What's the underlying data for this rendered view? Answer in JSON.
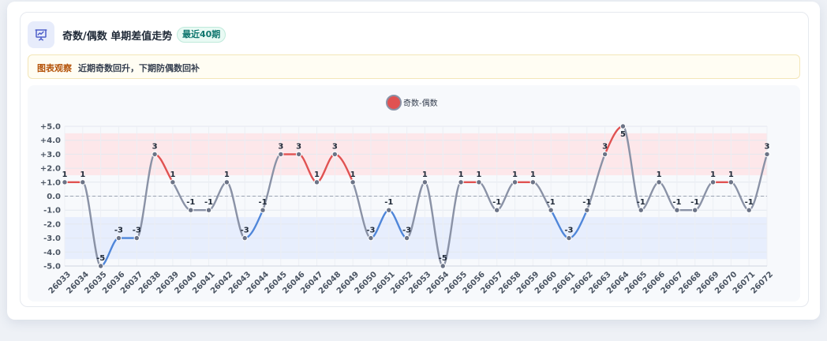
{
  "header": {
    "title": "奇数/偶数 单期差值走势",
    "badge": "最近40期",
    "icon": "chart-presentation-icon"
  },
  "observation": {
    "label": "图表观察",
    "text": "近期奇数回升，下期防偶数回补"
  },
  "colors": {
    "positive": "#e05252",
    "negative": "#4f86d9",
    "neutral": "#8a92a6",
    "positive_band": "#fde7ea",
    "negative_band": "#e7eefd"
  },
  "chart_data": {
    "type": "line",
    "categories": [
      "26033",
      "26034",
      "26035",
      "26036",
      "26037",
      "26038",
      "26039",
      "26040",
      "26041",
      "26042",
      "26043",
      "26044",
      "26045",
      "26046",
      "26047",
      "26048",
      "26049",
      "26050",
      "26051",
      "26052",
      "26053",
      "26054",
      "26055",
      "26056",
      "26057",
      "26058",
      "26059",
      "26060",
      "26061",
      "26062",
      "26063",
      "26064",
      "26065",
      "26066",
      "26067",
      "26068",
      "26069",
      "26070",
      "26071",
      "26072"
    ],
    "series": [
      {
        "name": "奇数-偶数",
        "values": [
          1,
          1,
          -5,
          -3,
          -3,
          3,
          1,
          -1,
          -1,
          1,
          -3,
          -1,
          3,
          3,
          1,
          3,
          1,
          -3,
          -1,
          -3,
          1,
          -5,
          1,
          1,
          -1,
          1,
          1,
          -1,
          -3,
          -1,
          3,
          5,
          -1,
          1,
          -1,
          -1,
          1,
          1,
          -1,
          3
        ]
      }
    ],
    "ylim": [
      -5,
      5
    ],
    "yticks": [
      "-5.0",
      "-4.0",
      "-3.0",
      "-2.0",
      "-1.0",
      "0.0",
      "+1.0",
      "+2.0",
      "+3.0",
      "+4.0",
      "+5.0"
    ],
    "bands": [
      {
        "from": 1.5,
        "to": 4.5,
        "kind": "positive"
      },
      {
        "from": -4.5,
        "to": -1.5,
        "kind": "negative"
      }
    ],
    "reference_line": 0,
    "legend_position": "top-center",
    "grid": true
  }
}
